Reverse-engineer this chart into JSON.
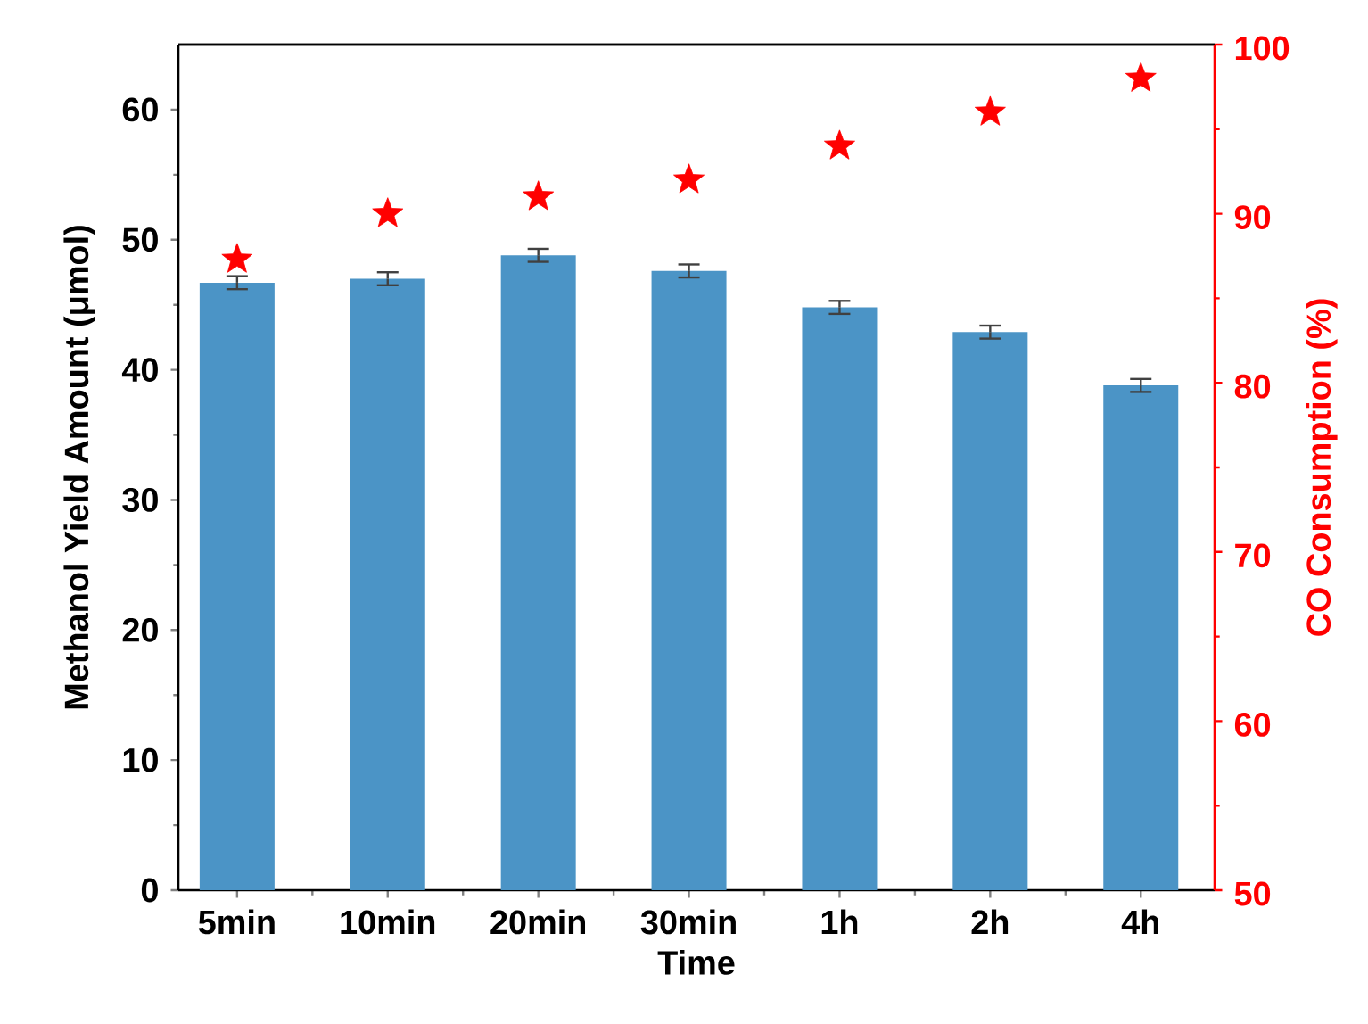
{
  "chart_data": {
    "type": "bar",
    "xlabel": "Time",
    "ylabel": "Methanol Yield Amount (μmol)",
    "y2label": "CO Consumption (%)",
    "categories": [
      "5min",
      "10min",
      "20min",
      "30min",
      "1h",
      "2h",
      "4h"
    ],
    "series": [
      {
        "color": "#4b94c6",
        "values": [
          46.7,
          47.0,
          48.8,
          47.6,
          44.8,
          42.9,
          38.8
        ],
        "errors": [
          0.5,
          0.5,
          0.5,
          0.5,
          0.5,
          0.5,
          0.5
        ]
      },
      {
        "type": "scatter",
        "axis": "y2",
        "color": "#ff0000",
        "marker": "star",
        "values": [
          87.3,
          90,
          91,
          92,
          94,
          96,
          98
        ]
      }
    ],
    "ylim": [
      0,
      65
    ],
    "yticks": [
      0,
      10,
      20,
      30,
      40,
      50,
      60
    ],
    "y2lim": [
      50,
      100
    ],
    "y2ticks": [
      50,
      60,
      70,
      80,
      90,
      100
    ]
  }
}
